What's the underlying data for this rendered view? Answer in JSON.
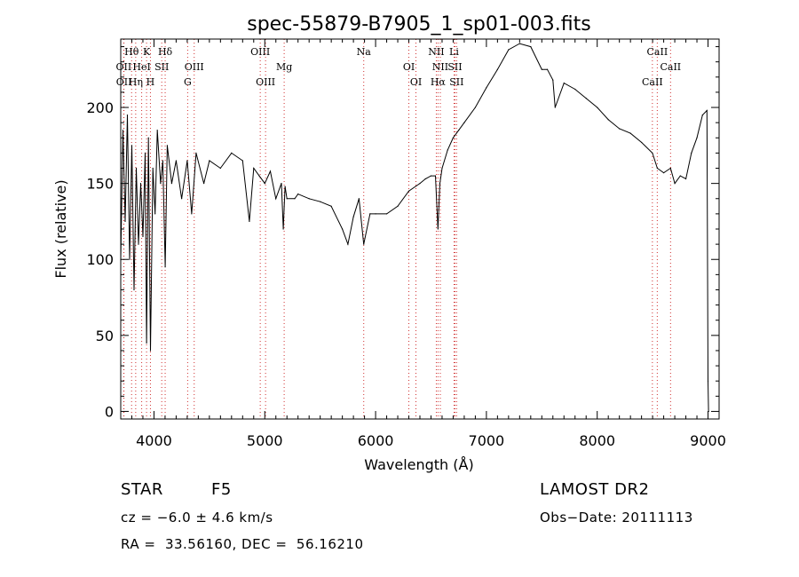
{
  "chart_data": {
    "type": "line",
    "title": "spec-55879-B7905_1_sp01-003.fits",
    "xlabel": "Wavelength (Å)",
    "ylabel": "Flux (relative)",
    "xlim": [
      3700,
      9100
    ],
    "ylim": [
      -5,
      245
    ],
    "xticks": [
      4000,
      5000,
      6000,
      7000,
      8000,
      9000
    ],
    "yticks": [
      0,
      50,
      100,
      150,
      200
    ],
    "grid": false,
    "series": [
      {
        "color": "#000000",
        "x": [
          3700,
          3720,
          3740,
          3760,
          3780,
          3800,
          3820,
          3840,
          3860,
          3880,
          3900,
          3920,
          3933,
          3950,
          3968,
          3990,
          4010,
          4030,
          4060,
          4080,
          4101,
          4120,
          4160,
          4200,
          4250,
          4300,
          4340,
          4380,
          4450,
          4500,
          4600,
          4700,
          4800,
          4861,
          4900,
          4950,
          5000,
          5050,
          5100,
          5150,
          5167,
          5183,
          5200,
          5270,
          5300,
          5400,
          5500,
          5600,
          5700,
          5750,
          5800,
          5850,
          5893,
          5950,
          6000,
          6100,
          6200,
          6300,
          6400,
          6450,
          6500,
          6540,
          6563,
          6580,
          6600,
          6650,
          6700,
          6750,
          6800,
          6900,
          7000,
          7100,
          7200,
          7300,
          7400,
          7500,
          7550,
          7600,
          7620,
          7700,
          7800,
          7900,
          8000,
          8100,
          8200,
          8300,
          8400,
          8498,
          8542,
          8600,
          8662,
          8700,
          8750,
          8800,
          8850,
          8900,
          8950,
          8990,
          9000,
          9005
        ],
        "y": [
          100,
          185,
          125,
          195,
          100,
          175,
          80,
          160,
          110,
          150,
          115,
          170,
          45,
          180,
          40,
          160,
          130,
          185,
          150,
          165,
          95,
          175,
          150,
          165,
          140,
          165,
          130,
          170,
          150,
          165,
          160,
          170,
          165,
          125,
          160,
          155,
          150,
          158,
          140,
          150,
          120,
          148,
          140,
          140,
          143,
          140,
          138,
          135,
          120,
          110,
          128,
          140,
          110,
          130,
          130,
          130,
          135,
          145,
          150,
          153,
          155,
          155,
          120,
          150,
          160,
          172,
          180,
          185,
          190,
          200,
          213,
          225,
          238,
          242,
          240,
          225,
          225,
          218,
          200,
          216,
          212,
          206,
          200,
          192,
          186,
          183,
          177,
          170,
          160,
          157,
          160,
          150,
          155,
          153,
          170,
          180,
          195,
          198,
          20,
          0
        ]
      }
    ],
    "lines": [
      {
        "name": "Hθ",
        "x": 3798,
        "row": 0
      },
      {
        "name": "K",
        "x": 3933,
        "row": 0
      },
      {
        "name": "Hδ",
        "x": 4101,
        "row": 0
      },
      {
        "name": "OII",
        "x": 3727,
        "row": 1
      },
      {
        "name": "HeI",
        "x": 3889,
        "row": 1
      },
      {
        "name": "SII",
        "x": 4070,
        "row": 1
      },
      {
        "name": "OII",
        "x": 3729,
        "row": 2
      },
      {
        "name": "Hη",
        "x": 3835,
        "row": 2
      },
      {
        "name": "H",
        "x": 3968,
        "row": 2
      },
      {
        "name": "OIII",
        "x": 4363,
        "row": 1
      },
      {
        "name": "G",
        "x": 4304,
        "row": 2
      },
      {
        "name": "OIII",
        "x": 4959,
        "row": 0
      },
      {
        "name": "OIII",
        "x": 5007,
        "row": 2
      },
      {
        "name": "Mg",
        "x": 5175,
        "row": 1
      },
      {
        "name": "Na",
        "x": 5893,
        "row": 0
      },
      {
        "name": "OI",
        "x": 6300,
        "row": 1
      },
      {
        "name": "OI",
        "x": 6364,
        "row": 2
      },
      {
        "name": "NII",
        "x": 6548,
        "row": 0
      },
      {
        "name": "Li",
        "x": 6708,
        "row": 0
      },
      {
        "name": "NII",
        "x": 6584,
        "row": 1
      },
      {
        "name": "SII",
        "x": 6716,
        "row": 1
      },
      {
        "name": "Hα",
        "x": 6563,
        "row": 2
      },
      {
        "name": "SII",
        "x": 6731,
        "row": 2
      },
      {
        "name": "CaII",
        "x": 8542,
        "row": 0
      },
      {
        "name": "CaII",
        "x": 8662,
        "row": 1
      },
      {
        "name": "CaII",
        "x": 8498,
        "row": 2
      }
    ]
  },
  "info": {
    "object_type": "STAR",
    "subclass": "F5",
    "survey": "LAMOST DR2",
    "cz": "cz = −6.0 ± 4.6 km/s",
    "obs_date": "Obs−Date: 20111113",
    "coords": "RA =  33.56160, DEC =  56.16210"
  }
}
